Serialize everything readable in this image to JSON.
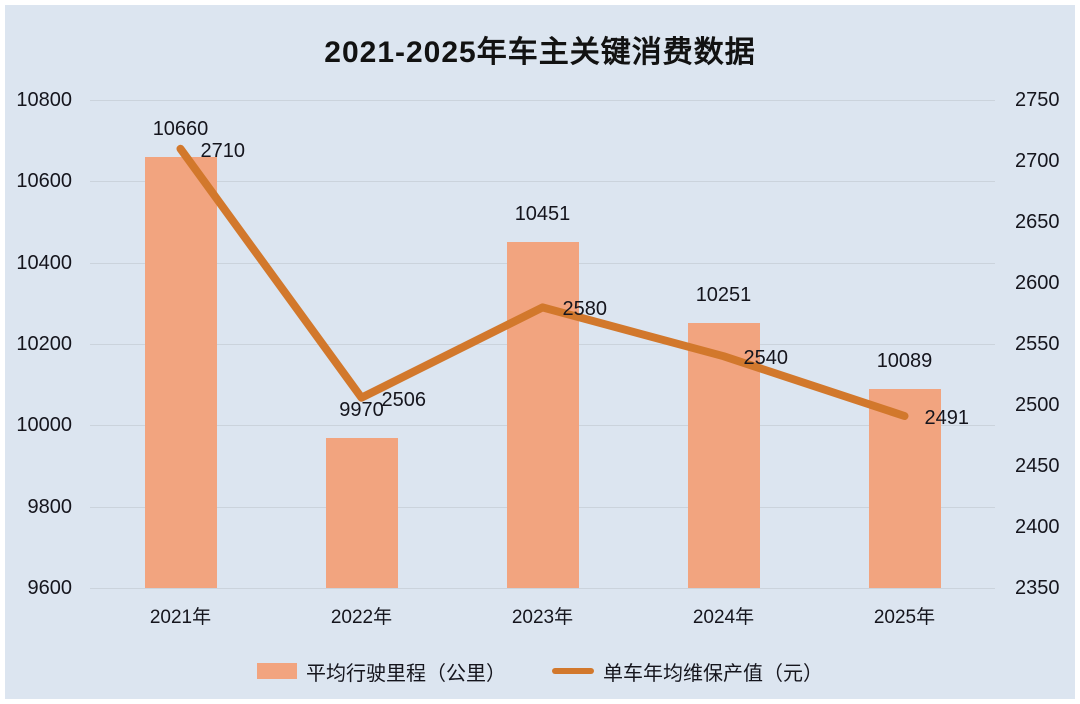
{
  "title": "2021-2025年车主关键消费数据",
  "colors": {
    "background": "#DCE5F0",
    "frame_border": "#FFFFFF",
    "gridline": "#CBD3DC",
    "bar": "#F2A47F",
    "line": "#D2782C",
    "text": "#15151d"
  },
  "chart_data": {
    "type": "combo-bar-line",
    "categories": [
      "2021年",
      "2022年",
      "2023年",
      "2024年",
      "2025年"
    ],
    "series": [
      {
        "name": "平均行驶里程（公里）",
        "type": "bar",
        "axis": "left",
        "color": "#F2A47F",
        "values": [
          10660,
          9970,
          10451,
          10251,
          10089
        ]
      },
      {
        "name": "单车年均维保产值（元）",
        "type": "line",
        "axis": "right",
        "color": "#D2782C",
        "values": [
          2710,
          2506,
          2580,
          2540,
          2491
        ]
      }
    ],
    "left_axis": {
      "min": 9600,
      "max": 10800,
      "step": 200,
      "ticks": [
        "10800",
        "10600",
        "10400",
        "10200",
        "10000",
        "9800",
        "9600"
      ]
    },
    "right_axis": {
      "min": 2350,
      "max": 2750,
      "step": 50,
      "ticks": [
        "2750",
        "2700",
        "2650",
        "2600",
        "2550",
        "2500",
        "2450",
        "2400",
        "2350"
      ]
    },
    "grid": true,
    "legend_position": "bottom"
  }
}
